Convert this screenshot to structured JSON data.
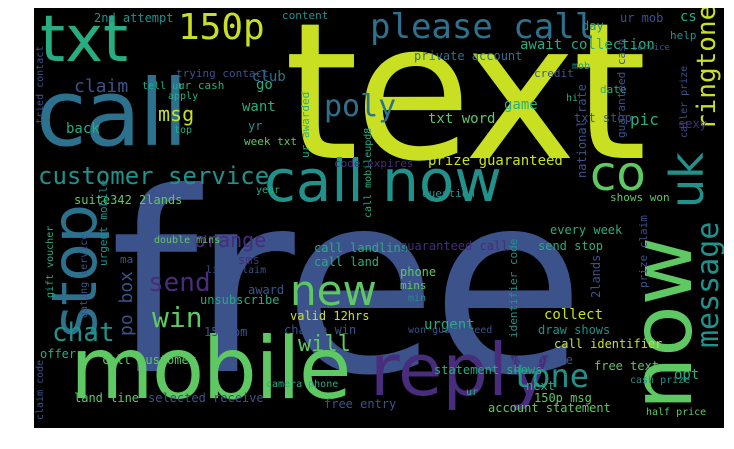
{
  "words": [
    {
      "id": "free",
      "text": "free",
      "color": "#3b528b"
    },
    {
      "id": "text",
      "text": "text",
      "color": "#c9e022"
    },
    {
      "id": "call",
      "text": "call",
      "color": "#2c728e"
    },
    {
      "id": "now",
      "text": "now",
      "color": "#5ec962"
    },
    {
      "id": "mobile",
      "text": "mobile",
      "color": "#5ec962"
    },
    {
      "id": "reply",
      "text": "reply",
      "color": "#472d7b"
    },
    {
      "id": "call-now",
      "text": "call now",
      "color": "#21918c"
    },
    {
      "id": "stop",
      "text": "stop",
      "color": "#2c728e"
    },
    {
      "id": "txt",
      "text": "txt",
      "color": "#27ad81"
    },
    {
      "id": "150p",
      "text": "150p",
      "color": "#c9e022"
    },
    {
      "id": "please-call",
      "text": "please call",
      "color": "#2c728e"
    },
    {
      "id": "co",
      "text": "co",
      "color": "#5ec962"
    },
    {
      "id": "uk",
      "text": "uk",
      "color": "#21918c"
    },
    {
      "id": "new",
      "text": "new",
      "color": "#5ec962"
    },
    {
      "id": "tone",
      "text": "tone",
      "color": "#21918c"
    },
    {
      "id": "message",
      "text": "message",
      "color": "#21918c"
    },
    {
      "id": "ringtone",
      "text": "ringtone",
      "color": "#c9e022"
    },
    {
      "id": "customer-service",
      "text": "customer service",
      "color": "#21918c"
    },
    {
      "id": "chat",
      "text": "chat",
      "color": "#21918c"
    },
    {
      "id": "win",
      "text": "win",
      "color": "#5ec962"
    },
    {
      "id": "send",
      "text": "send",
      "color": "#472d7b"
    },
    {
      "id": "poly",
      "text": "poly",
      "color": "#2c728e"
    },
    {
      "id": "will",
      "text": "will",
      "color": "#5ec962"
    },
    {
      "id": "orange",
      "text": "orange",
      "color": "#472d7b"
    },
    {
      "id": "msg",
      "text": "msg",
      "color": "#c9e022"
    },
    {
      "id": "claim",
      "text": "claim",
      "color": "#3b528b"
    },
    {
      "id": "po-box",
      "text": "po box",
      "color": "#3b528b"
    },
    {
      "id": "want",
      "text": "want",
      "color": "#27ad81"
    },
    {
      "id": "go",
      "text": "go",
      "color": "#27ad81"
    },
    {
      "id": "back",
      "text": "back",
      "color": "#27ad81"
    },
    {
      "id": "club",
      "text": "club",
      "color": "#2c728e"
    },
    {
      "id": "pic",
      "text": "pic",
      "color": "#27ad81"
    },
    {
      "id": "game",
      "text": "game",
      "color": "#27ad81"
    },
    {
      "id": "opt",
      "text": "opt",
      "color": "#27ad81"
    },
    {
      "id": "next",
      "text": "next",
      "color": "#27ad81"
    },
    {
      "id": "sms",
      "text": "sms",
      "color": "#472d7b"
    },
    {
      "id": "award",
      "text": "award",
      "color": "#3b528b"
    },
    {
      "id": "offer",
      "text": "offer",
      "color": "#27ad81"
    },
    {
      "id": "sexy",
      "text": "sexy",
      "color": "#472d7b"
    },
    {
      "id": "urgent",
      "text": "urgent",
      "color": "#27ad81"
    },
    {
      "id": "phone",
      "text": "phone",
      "color": "#5ec962"
    },
    {
      "id": "collect",
      "text": "collect",
      "color": "#c9e022"
    },
    {
      "id": "txt-word",
      "text": "txt word",
      "color": "#5ec962"
    },
    {
      "id": "txt-stop",
      "text": "txt stop",
      "color": "#3b528b"
    },
    {
      "id": "await-collection",
      "text": "await collection",
      "color": "#27ad81"
    },
    {
      "id": "private-account",
      "text": "private account",
      "color": "#2c728e"
    },
    {
      "id": "prize-guaranteed",
      "text": "prize guaranteed",
      "color": "#c9e022"
    },
    {
      "id": "call-landline",
      "text": "call landline",
      "color": "#27ad81"
    },
    {
      "id": "call-land",
      "text": "call land",
      "color": "#27ad81"
    },
    {
      "id": "call-mobileupd8",
      "text": "call mobileupd8",
      "color": "#27ad81"
    },
    {
      "id": "guaranteed-call",
      "text": "guaranteed call",
      "color": "#472d7b"
    },
    {
      "id": "send-stop",
      "text": "send stop",
      "color": "#27ad81"
    },
    {
      "id": "every-week",
      "text": "every week",
      "color": "#27ad81"
    },
    {
      "id": "free-text",
      "text": "free text",
      "color": "#5ec962"
    },
    {
      "id": "free-entry",
      "text": "free entry",
      "color": "#3b528b"
    },
    {
      "id": "won-prize",
      "text": "won prize",
      "color": "#3b528b"
    },
    {
      "id": "call-identifier",
      "text": "call identifier",
      "color": "#c9e022"
    },
    {
      "id": "call-customer",
      "text": "call customer",
      "color": "#5ec962"
    },
    {
      "id": "land-line",
      "text": "land line",
      "color": "#5ec962"
    },
    {
      "id": "selected-receive",
      "text": "selected receive",
      "color": "#3b528b"
    },
    {
      "id": "camera-phone",
      "text": "camera phone",
      "color": "#27ad81"
    },
    {
      "id": "account-statement",
      "text": "account statement",
      "color": "#5ec962"
    },
    {
      "id": "150p-msg",
      "text": "150p msg",
      "color": "#5ec962"
    },
    {
      "id": "valid-12hrs",
      "text": "valid 12hrs",
      "color": "#c9e022"
    },
    {
      "id": "chance-win",
      "text": "chance win",
      "color": "#3b528b"
    },
    {
      "id": "unsubscribe",
      "text": "unsubscribe",
      "color": "#27ad81"
    },
    {
      "id": "line-claim",
      "text": "line claim",
      "color": "#3b528b"
    },
    {
      "id": "won-guaranteed",
      "text": "won guaranteed",
      "color": "#3b528b"
    },
    {
      "id": "draw-shows",
      "text": "draw shows",
      "color": "#21918c"
    },
    {
      "id": "statement-shows",
      "text": "statement shows",
      "color": "#27ad81"
    },
    {
      "id": "cash-prize",
      "text": "cash prize",
      "color": "#21918c"
    },
    {
      "id": "150ppm",
      "text": "150ppm",
      "color": "#3b528b"
    },
    {
      "id": "double-mins",
      "text": "double mins",
      "color": "#5ec962"
    },
    {
      "id": "suite342-2lands",
      "text": "suite342 2lands",
      "color": "#5ec962"
    },
    {
      "id": "trying-contact",
      "text": "trying contact",
      "color": "#3b528b"
    },
    {
      "id": "ur-cash",
      "text": "ur cash",
      "color": "#27ad81"
    },
    {
      "id": "ur-awarded",
      "text": "ur awarded",
      "color": "#27ad81"
    },
    {
      "id": "2nd-attempt",
      "text": "2nd attempt",
      "color": "#21918c"
    },
    {
      "id": "content",
      "text": "content",
      "color": "#21918c"
    },
    {
      "id": "day",
      "text": "day",
      "color": "#21918c"
    },
    {
      "id": "ur-mob",
      "text": "ur mob",
      "color": "#3b528b"
    },
    {
      "id": "cs",
      "text": "cs",
      "color": "#27ad81"
    },
    {
      "id": "help",
      "text": "help",
      "color": "#21918c"
    },
    {
      "id": "date",
      "text": "date",
      "color": "#27ad81"
    },
    {
      "id": "code-expires",
      "text": "code expires",
      "color": "#472d7b"
    },
    {
      "id": "shows-won",
      "text": "shows won",
      "color": "#5ec962"
    },
    {
      "id": "national-rate",
      "text": "national rate",
      "color": "#3b528b"
    },
    {
      "id": "guaranteed-cash",
      "text": "guaranteed cash",
      "color": "#3b528b"
    },
    {
      "id": "prize-claim",
      "text": "prize claim",
      "color": "#3b528b"
    },
    {
      "id": "identifier-code",
      "text": "identifier code",
      "color": "#21918c"
    },
    {
      "id": "2lands",
      "text": "2lands",
      "color": "#3b528b"
    },
    {
      "id": "urgent-mobile",
      "text": "urgent mobile",
      "color": "#21918c"
    },
    {
      "id": "dating-service",
      "text": "dating service",
      "color": "#3b528b"
    },
    {
      "id": "gift-voucher",
      "text": "gift voucher",
      "color": "#27ad81"
    },
    {
      "id": "mins",
      "text": "mins",
      "color": "#5ec962"
    },
    {
      "id": "question",
      "text": "question",
      "color": "#21918c"
    },
    {
      "id": "year",
      "text": "year",
      "color": "#27ad81"
    },
    {
      "id": "week-txt",
      "text": "week txt",
      "color": "#5ec962"
    },
    {
      "id": "apply",
      "text": "apply",
      "color": "#27ad81"
    },
    {
      "id": "tell-ur",
      "text": "tell ur",
      "color": "#27ad81"
    },
    {
      "id": "top",
      "text": "top",
      "color": "#27ad81"
    },
    {
      "id": "yr",
      "text": "yr",
      "color": "#21918c"
    },
    {
      "id": "half-price",
      "text": "half price",
      "color": "#5ec962"
    },
    {
      "id": "claim-code",
      "text": "claim code",
      "color": "#3b528b"
    },
    {
      "id": "tried-contact",
      "text": "tried contact",
      "color": "#3b528b"
    },
    {
      "id": "credit",
      "text": "credit",
      "color": "#3b528b"
    },
    {
      "id": "service",
      "text": "service",
      "color": "#3b528b"
    },
    {
      "id": "min",
      "text": "min",
      "color": "#21918c"
    },
    {
      "id": "mob",
      "text": "mob",
      "color": "#21918c"
    },
    {
      "id": "hi",
      "text": "hi",
      "color": "#27ad81"
    },
    {
      "id": "ma",
      "text": "ma",
      "color": "#3b528b"
    },
    {
      "id": "caller-prize",
      "text": "caller prize",
      "color": "#3b528b"
    },
    {
      "id": "ur",
      "text": "ur",
      "color": "#27ad81"
    }
  ]
}
